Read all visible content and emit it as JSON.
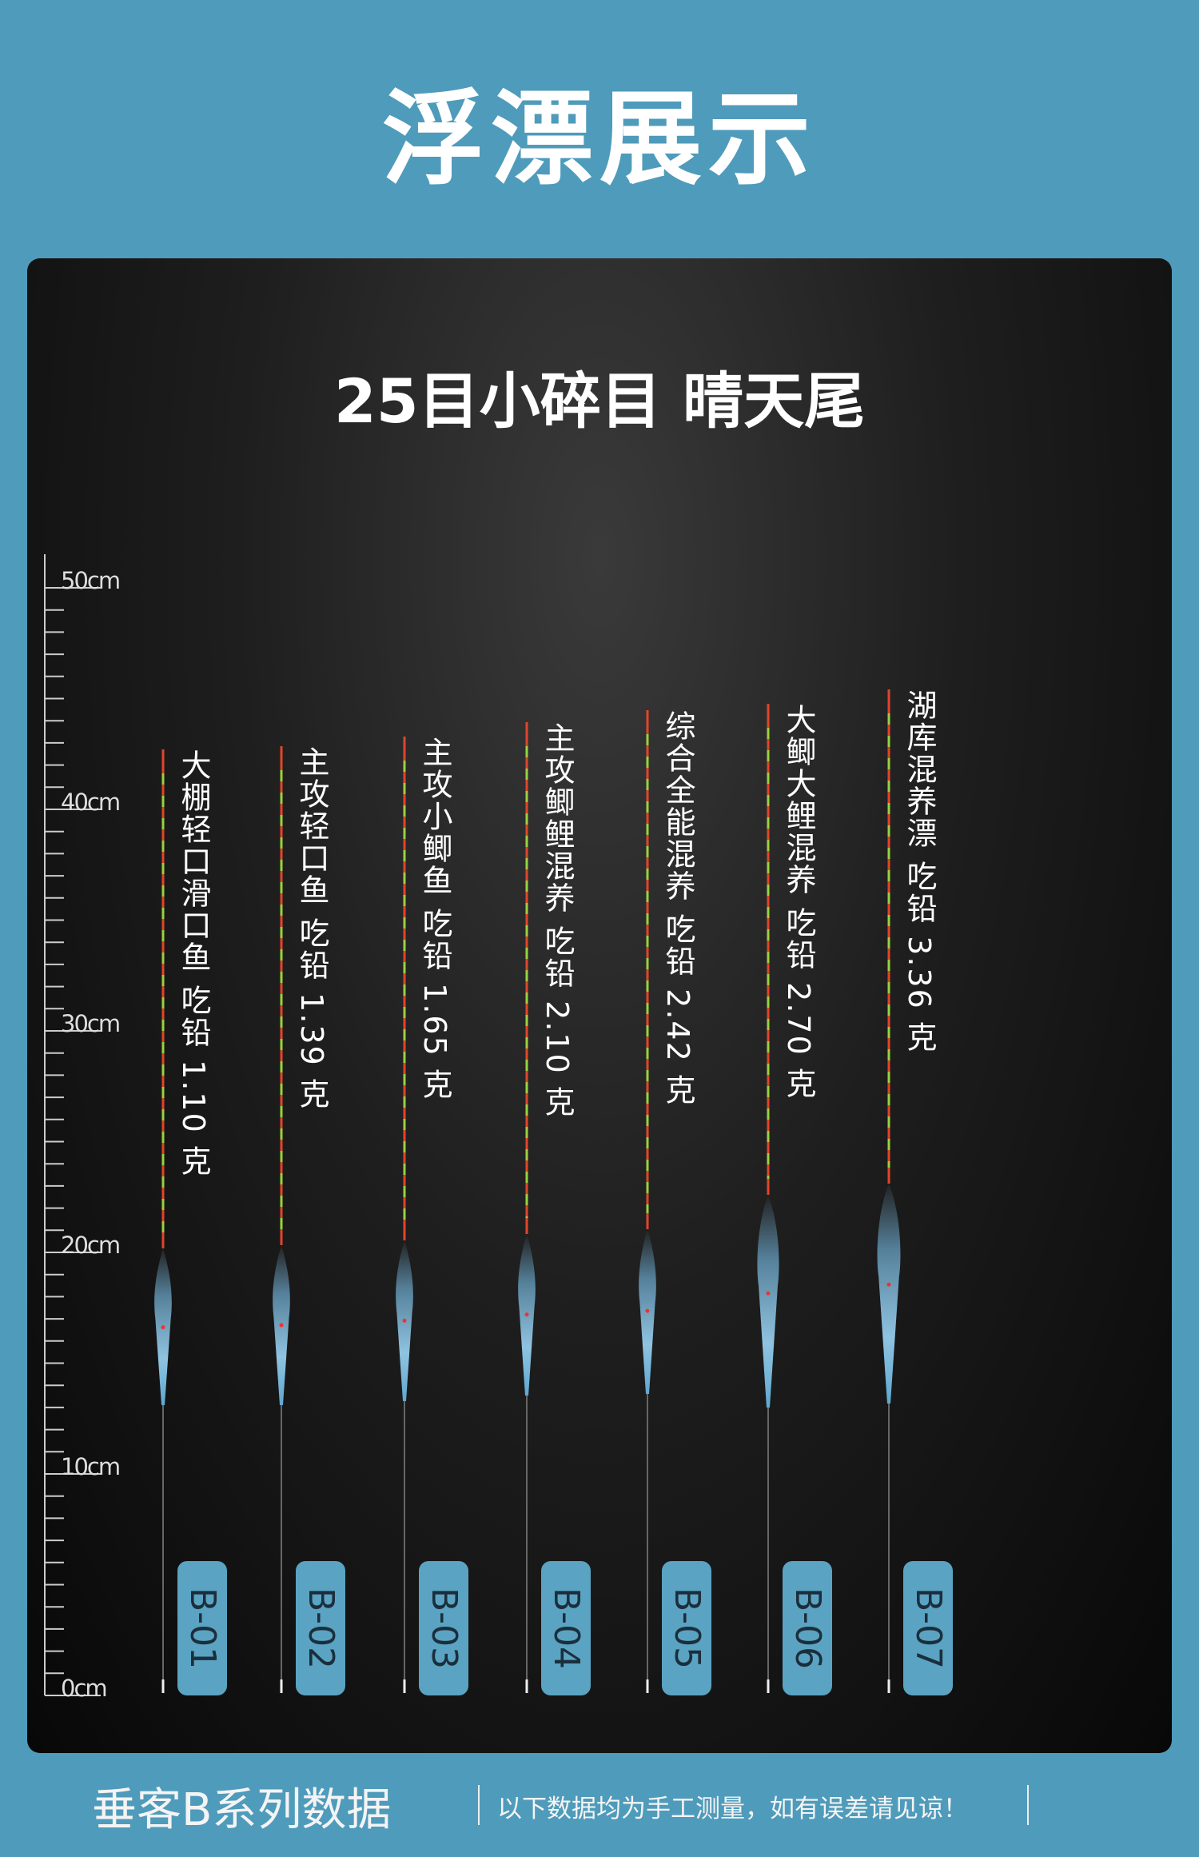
{
  "header": {
    "title": "浮漂展示"
  },
  "panel": {
    "subtitle": "25目小碎目 晴天尾",
    "ruler": [
      "50cm",
      "40cm",
      "30cm",
      "20cm",
      "10cm",
      "0cm"
    ],
    "floats": [
      {
        "label": "大棚轻口滑口鱼 吃铅 1.10 克",
        "code": "B-01"
      },
      {
        "label": "主攻轻口鱼 吃铅 1.39 克",
        "code": "B-02"
      },
      {
        "label": "主攻小鲫鱼 吃铅 1.65 克",
        "code": "B-03"
      },
      {
        "label": "主攻鲫鲤混养 吃铅 2.10 克",
        "code": "B-04"
      },
      {
        "label": "综合全能混养 吃铅 2.42 克",
        "code": "B-05"
      },
      {
        "label": "大鲫大鲤混养 吃铅 2.70 克",
        "code": "B-06"
      },
      {
        "label": "湖库混养漂 吃铅 3.36 克",
        "code": "B-07"
      }
    ]
  },
  "footer": {
    "series": "垂客B系列数据",
    "note": "以下数据均为手工测量，如有误差请见谅！"
  }
}
